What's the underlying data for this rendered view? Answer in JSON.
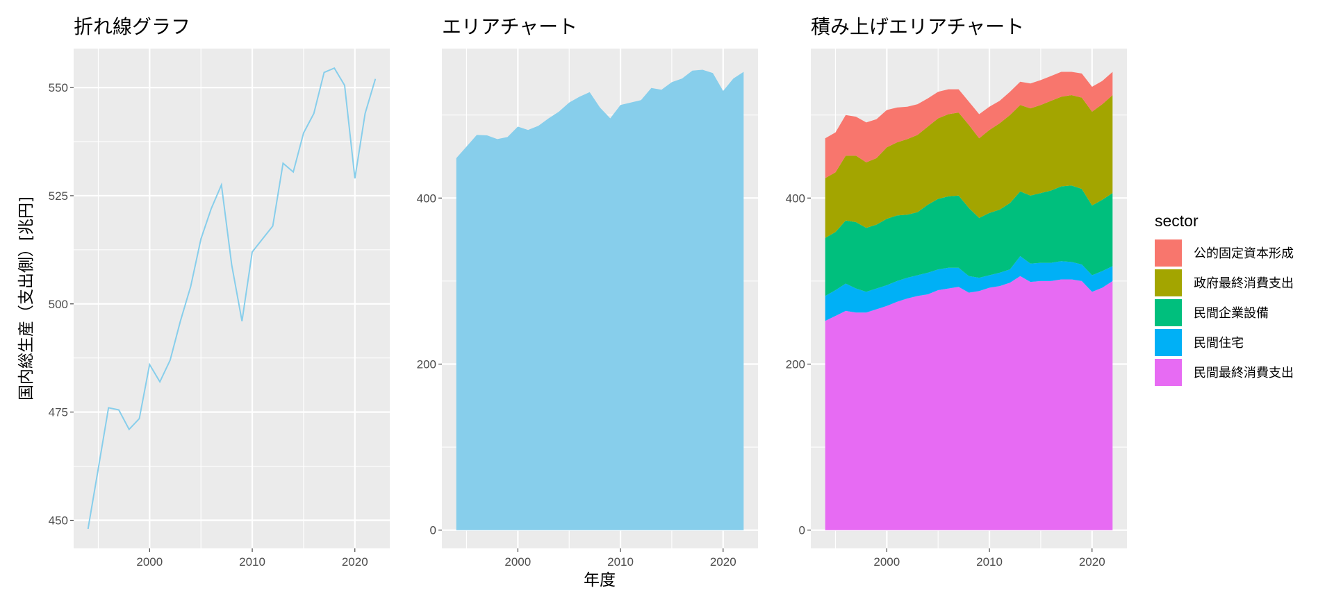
{
  "chart_data": [
    {
      "type": "line",
      "title": "折れ線グラフ",
      "xlabel": "",
      "ylabel": "国内総生産（支出側）[兆円]",
      "xlim": [
        1992.6,
        2023.4
      ],
      "ylim": [
        443.5,
        559
      ],
      "xticks": [
        2000,
        2010,
        2020
      ],
      "yticks": [
        450,
        475,
        500,
        525,
        550
      ],
      "color": "#87CEEB",
      "x": [
        1994,
        1995,
        1996,
        1997,
        1998,
        1999,
        2000,
        2001,
        2002,
        2003,
        2004,
        2005,
        2006,
        2007,
        2008,
        2009,
        2010,
        2011,
        2012,
        2013,
        2014,
        2015,
        2016,
        2017,
        2018,
        2019,
        2020,
        2021,
        2022
      ],
      "y": [
        448,
        462,
        476,
        475.5,
        471,
        473.5,
        486,
        482,
        487,
        496,
        504,
        515,
        522,
        527.5,
        509,
        496,
        512,
        515,
        518,
        532.5,
        530.5,
        539.5,
        544,
        553.5,
        554.5,
        550.5,
        529,
        544,
        552
      ]
    },
    {
      "type": "area",
      "title": "エリアチャート",
      "xlabel": "年度",
      "ylabel": "",
      "xlim": [
        1992.6,
        2023.4
      ],
      "ylim": [
        -22,
        580
      ],
      "xticks": [
        2000,
        2010,
        2020
      ],
      "yticks": [
        0,
        200,
        400
      ],
      "color": "#87CEEB",
      "x": [
        1994,
        1995,
        1996,
        1997,
        1998,
        1999,
        2000,
        2001,
        2002,
        2003,
        2004,
        2005,
        2006,
        2007,
        2008,
        2009,
        2010,
        2011,
        2012,
        2013,
        2014,
        2015,
        2016,
        2017,
        2018,
        2019,
        2020,
        2021,
        2022
      ],
      "y": [
        448,
        462,
        476,
        475.5,
        471,
        473.5,
        486,
        482,
        487,
        496,
        504,
        515,
        522,
        527.5,
        509,
        496,
        512,
        515,
        518,
        532.5,
        530.5,
        539.5,
        544,
        553.5,
        554.5,
        550.5,
        529,
        544,
        552
      ]
    },
    {
      "type": "area",
      "stacked": true,
      "title": "積み上げエリアチャート",
      "xlabel": "",
      "ylabel": "",
      "xlim": [
        1992.6,
        2023.4
      ],
      "ylim": [
        -22,
        580
      ],
      "xticks": [
        2000,
        2010,
        2020
      ],
      "yticks": [
        0,
        200,
        400
      ],
      "x": [
        1994,
        1995,
        1996,
        1997,
        1998,
        1999,
        2000,
        2001,
        2002,
        2003,
        2004,
        2005,
        2006,
        2007,
        2008,
        2009,
        2010,
        2011,
        2012,
        2013,
        2014,
        2015,
        2016,
        2017,
        2018,
        2019,
        2020,
        2021,
        2022
      ],
      "legend_title": "sector",
      "legend_position": "right",
      "series": [
        {
          "name": "民間最終消費支出",
          "color": "#E76BF3",
          "values": [
            252,
            258,
            264,
            262,
            262,
            266,
            270,
            275,
            279,
            282,
            284,
            289,
            291,
            293,
            286,
            288,
            292,
            294,
            298,
            306,
            299,
            300,
            300,
            302,
            302,
            300,
            287,
            292,
            300
          ]
        },
        {
          "name": "民間住宅",
          "color": "#00B0F6",
          "values": [
            30,
            31,
            33,
            29,
            25,
            25,
            25,
            25,
            25,
            25,
            26,
            25,
            25,
            23,
            20,
            16,
            15,
            16,
            16,
            24,
            22,
            22,
            22,
            22,
            21,
            20,
            20,
            20,
            18
          ]
        },
        {
          "name": "民間企業設備",
          "color": "#00BF7D",
          "values": [
            70,
            70,
            76,
            80,
            77,
            77,
            80,
            79,
            76,
            76,
            82,
            85,
            86,
            87,
            82,
            72,
            75,
            76,
            80,
            78,
            82,
            84,
            87,
            90,
            92,
            91,
            84,
            86,
            88
          ]
        },
        {
          "name": "政府最終消費支出",
          "color": "#A3A500",
          "values": [
            72,
            72,
            78,
            80,
            79,
            80,
            86,
            88,
            91,
            93,
            94,
            97,
            99,
            100,
            100,
            96,
            100,
            104,
            106,
            104,
            105,
            106,
            108,
            108,
            109,
            110,
            113,
            115,
            118
          ]
        },
        {
          "name": "公的固定資本形成",
          "color": "#F8766D",
          "values": [
            48,
            48,
            49,
            47,
            48,
            47,
            45,
            42,
            39,
            37,
            34,
            32,
            30,
            28,
            28,
            29,
            28,
            27,
            28,
            28,
            30,
            30,
            30,
            30,
            28,
            29,
            30,
            28,
            28
          ]
        }
      ]
    }
  ]
}
